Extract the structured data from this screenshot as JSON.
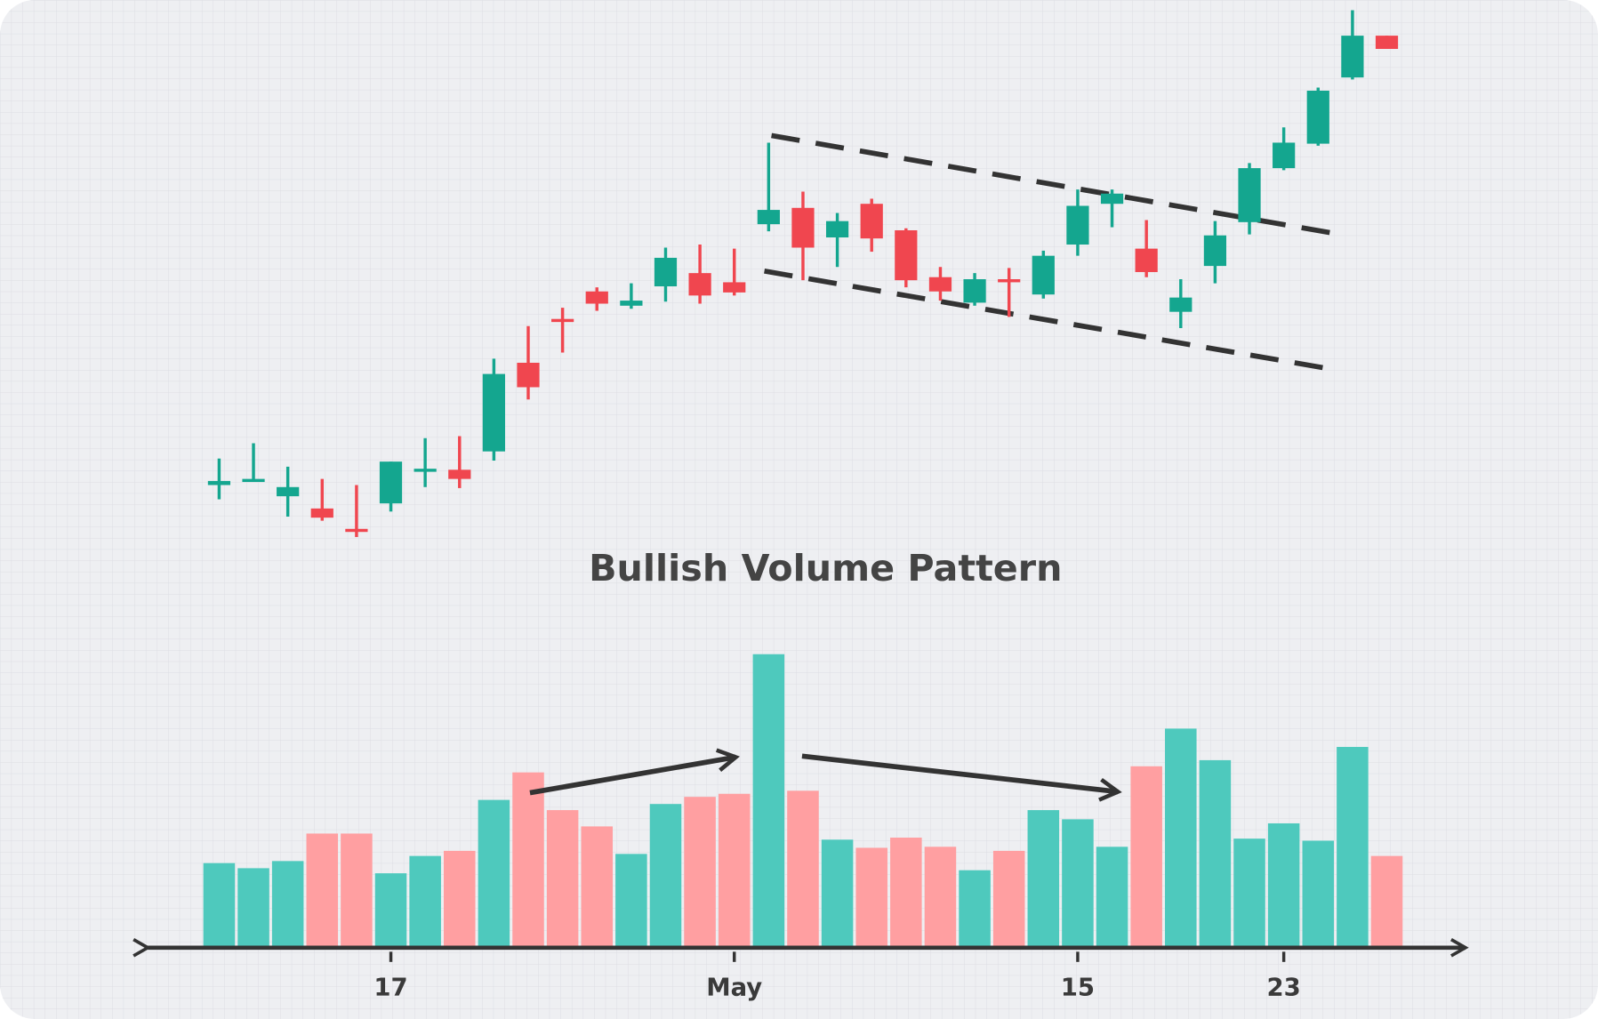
{
  "chart_data": {
    "type": "candlestick",
    "title": "Bullish Volume Pattern",
    "categories": [
      null,
      null,
      null,
      null,
      null,
      "17",
      null,
      null,
      null,
      null,
      null,
      null,
      null,
      null,
      null,
      "May",
      null,
      null,
      null,
      null,
      null,
      null,
      null,
      null,
      null,
      "15",
      null,
      null,
      null,
      null,
      null,
      "23",
      null,
      null,
      null
    ],
    "open": [
      124,
      129,
      113,
      101,
      81,
      106,
      139,
      139,
      157,
      244,
      287,
      314,
      300,
      319,
      332,
      323,
      380,
      396,
      367,
      400,
      374,
      328,
      303,
      326,
      311,
      360,
      400,
      356,
      294,
      339,
      382,
      435,
      459,
      524,
      565
    ],
    "high": [
      150,
      165,
      142,
      130,
      124,
      147,
      170,
      172,
      248,
      280,
      298,
      318,
      322,
      357,
      360,
      356,
      460,
      412,
      391,
      405,
      376,
      338,
      332,
      337,
      354,
      414,
      414,
      384,
      326,
      383,
      440,
      475,
      514,
      590,
      565
    ],
    "low": [
      110,
      129,
      93,
      89,
      73,
      98,
      122,
      121,
      148,
      208,
      254,
      295,
      297,
      304,
      302,
      310,
      373,
      325,
      338,
      353,
      318,
      305,
      300,
      289,
      307,
      349,
      377,
      328,
      278,
      322,
      370,
      433,
      457,
      522,
      552
    ],
    "close": [
      128,
      130,
      122,
      92,
      80,
      147,
      140,
      130,
      233,
      220,
      286,
      302,
      305,
      347,
      310,
      313,
      394,
      357,
      383,
      366,
      325,
      314,
      326,
      325,
      349,
      398,
      410,
      333,
      308,
      369,
      435,
      460,
      511,
      565,
      552
    ],
    "volume": [
      81,
      76,
      83,
      110,
      110,
      71,
      88,
      93,
      143,
      170,
      133,
      117,
      90,
      139,
      146,
      149,
      286,
      152,
      104,
      96,
      106,
      97,
      74,
      93,
      133,
      124,
      97,
      176,
      213,
      182,
      105,
      120,
      103,
      195,
      88
    ],
    "ylim": [
      0,
      600
    ],
    "y2lim": [
      0,
      300
    ],
    "up_color": "#14a68f",
    "down_color": "#f0464f",
    "up_volume_color": "#4ec9bd",
    "down_volume_color": "#ff9fa1"
  }
}
